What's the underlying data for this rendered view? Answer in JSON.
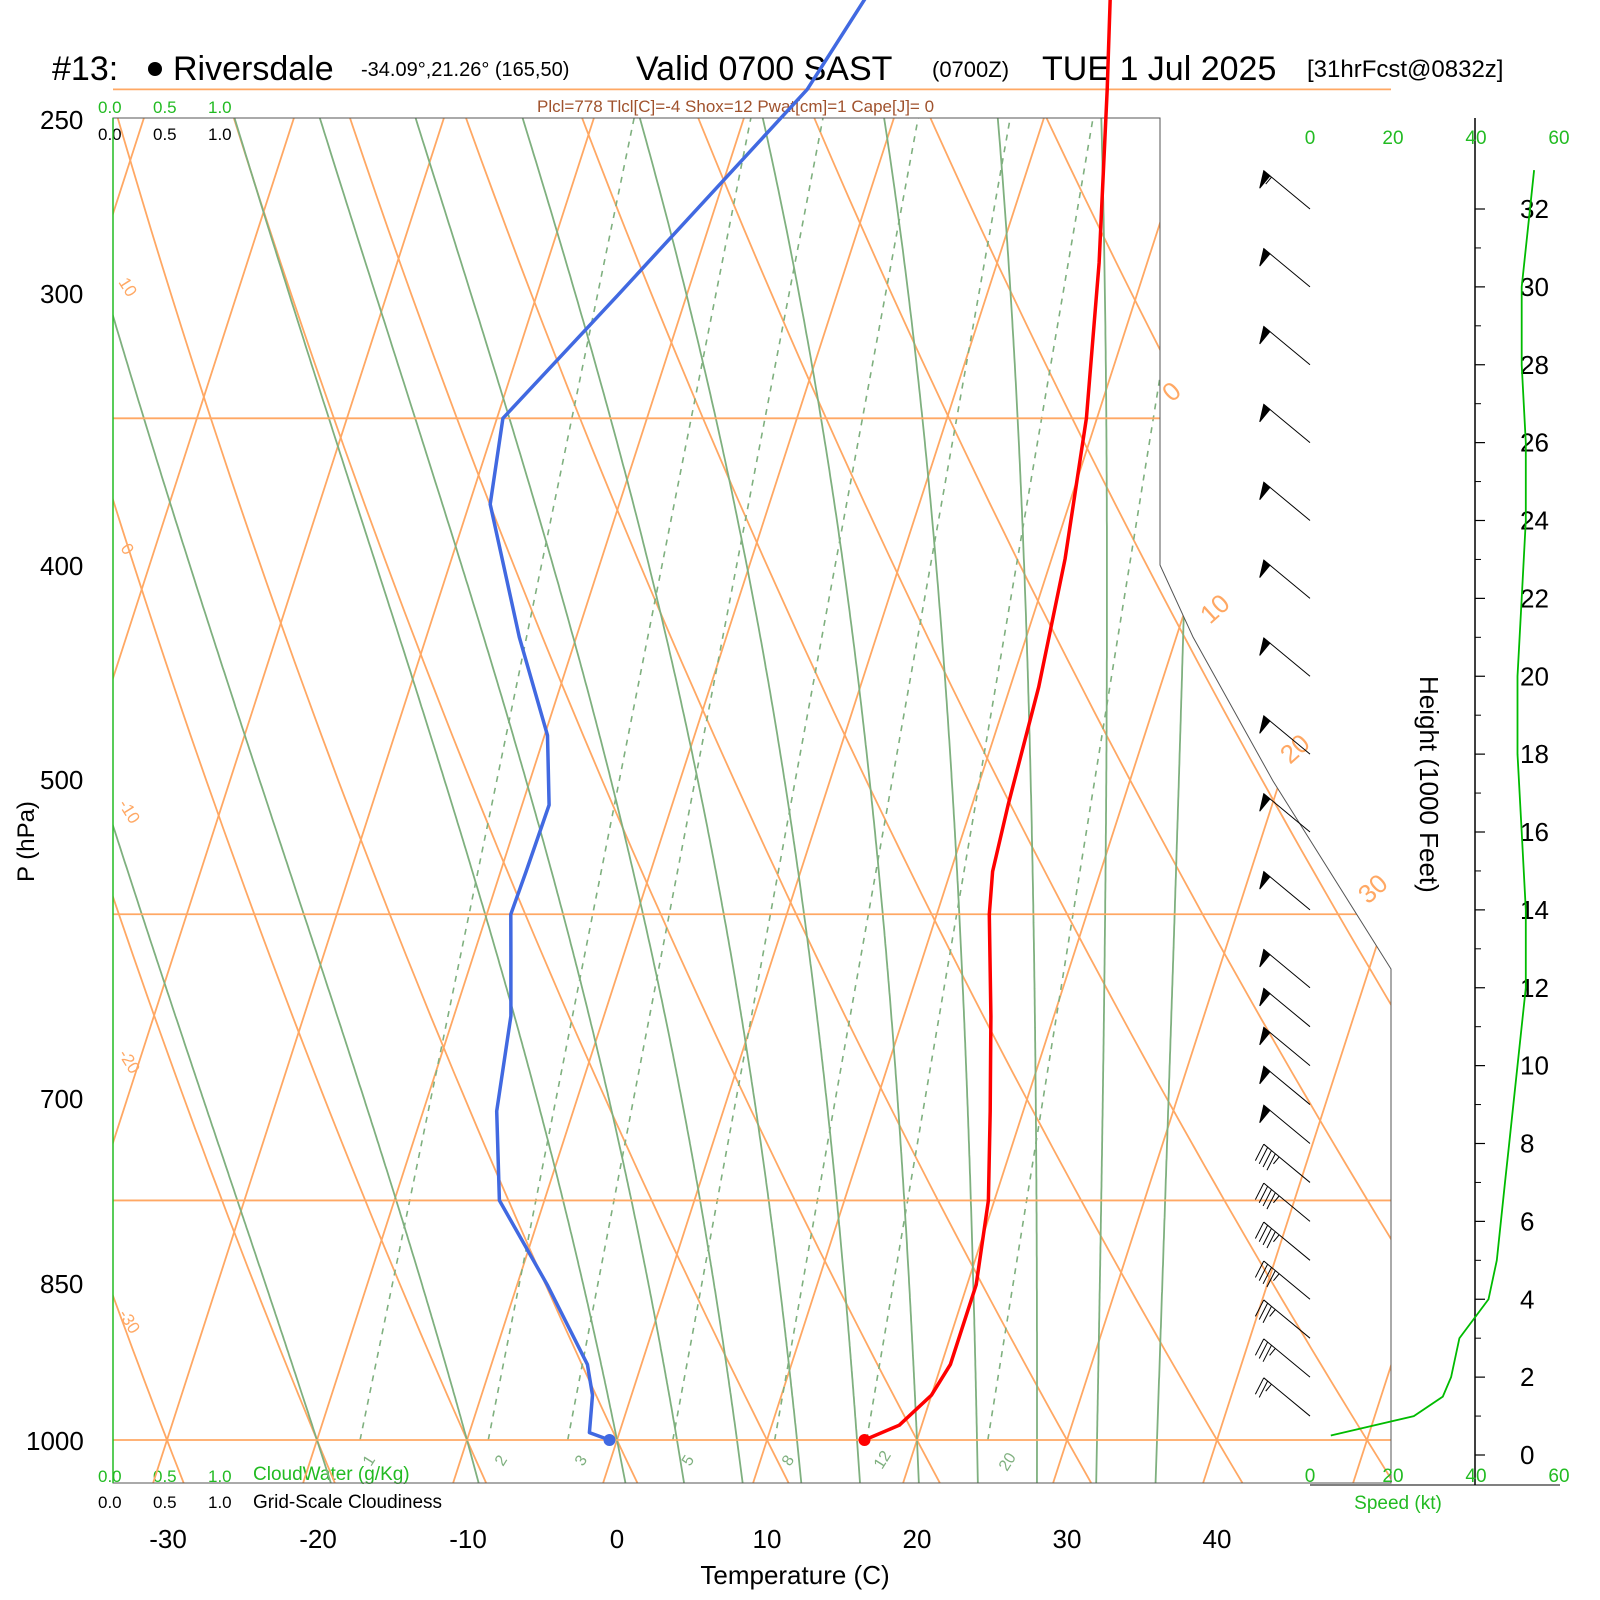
{
  "header": {
    "station_num": "#13:",
    "station_name": "Riversdale",
    "coords": "-34.09°,21.26° (165,50)",
    "valid": "Valid 0700 SAST",
    "zulu": "(0700Z)",
    "date": "TUE 1 Jul 2025",
    "fcst": "[31hrFcst@0832z]",
    "params": "Plcl=778 Tlcl[C]=-4 Shox=12 Pwat[cm]=1 Cape[J]= 0"
  },
  "colors": {
    "temperature": "#ff0000",
    "dewpoint": "#4169e1",
    "isotherm_isobar": "#ffa864",
    "adiabat": "#7fb07f",
    "speed": "#00bb00"
  },
  "chart_data": {
    "type": "line",
    "xlabel": "Temperature (C)",
    "ylabel": "P (hPa)",
    "x_ticks": [
      "-30",
      "-20",
      "-10",
      "0",
      "10",
      "20",
      "30",
      "40"
    ],
    "p_ticks": [
      "250",
      "300",
      "400",
      "500",
      "700",
      "850",
      "1000"
    ],
    "isotherm_labels": [
      "10",
      "0",
      "-10",
      "-20",
      "-30",
      "0",
      "10",
      "20",
      "30"
    ],
    "mixing_ratio_labels": [
      "1",
      "2",
      "3",
      "5",
      "8",
      "12",
      "20"
    ],
    "scale_top_green": [
      "0.0",
      "0.5",
      "1.0"
    ],
    "scale_top_black": [
      "0.0",
      "0.5",
      "1.0"
    ],
    "scale_bottom_green": [
      "0.0",
      "0.5",
      "1.0"
    ],
    "scale_bottom_black": [
      "0.0",
      "0.5",
      "1.0"
    ],
    "cloudwater_label": "CloudWater (g/Kg)",
    "cloudiness_label": "Grid-Scale Cloudiness",
    "series": [
      {
        "name": "temperature",
        "points": [
          [
            1000,
            16.5
          ],
          [
            990,
            18.5
          ],
          [
            970,
            20.0
          ],
          [
            950,
            20.6
          ],
          [
            900,
            20.6
          ],
          [
            850,
            19.6
          ],
          [
            800,
            17.8
          ],
          [
            750,
            15.8
          ],
          [
            700,
            13.5
          ],
          [
            680,
            12.8
          ],
          [
            650,
            12.4
          ],
          [
            600,
            11.9
          ],
          [
            550,
            10.9
          ],
          [
            500,
            9.3
          ],
          [
            450,
            6.8
          ],
          [
            400,
            3.6
          ],
          [
            350,
            -0.2
          ],
          [
            320,
            -2.6
          ],
          [
            300,
            -4.3
          ],
          [
            275,
            -6.8
          ],
          [
            262,
            -8.6
          ]
        ]
      },
      {
        "name": "dewpoint",
        "points": [
          [
            1000,
            -0.5
          ],
          [
            995,
            -2.0
          ],
          [
            970,
            -2.6
          ],
          [
            950,
            -3.6
          ],
          [
            900,
            -8.0
          ],
          [
            850,
            -13.0
          ],
          [
            800,
            -15.1
          ],
          [
            750,
            -16.2
          ],
          [
            720,
            -17.5
          ],
          [
            700,
            -18.4
          ],
          [
            680,
            -18.3
          ],
          [
            650,
            -18.2
          ],
          [
            620,
            -19.8
          ],
          [
            580,
            -23.8
          ],
          [
            530,
            -28.6
          ],
          [
            500,
            -29.6
          ],
          [
            460,
            -24.6
          ],
          [
            400,
            -16.4
          ],
          [
            375,
            -14.4
          ],
          [
            345,
            -15.4
          ],
          [
            320,
            -16.8
          ],
          [
            300,
            -18.3
          ],
          [
            280,
            -20.3
          ],
          [
            262,
            -22.2
          ]
        ]
      }
    ],
    "wind_axis": {
      "label": "Speed (kt)",
      "ticks": [
        "0",
        "20",
        "40",
        "60"
      ],
      "profile": [
        [
          0.5,
          5
        ],
        [
          1,
          25
        ],
        [
          1.5,
          32
        ],
        [
          2,
          34
        ],
        [
          3,
          36
        ],
        [
          4,
          43
        ],
        [
          5,
          45
        ],
        [
          6,
          46
        ],
        [
          7,
          47
        ],
        [
          8,
          48
        ],
        [
          10,
          50
        ],
        [
          12,
          52
        ],
        [
          14,
          52
        ],
        [
          16,
          51
        ],
        [
          18,
          50
        ],
        [
          20,
          50
        ],
        [
          22,
          51
        ],
        [
          24,
          52
        ],
        [
          26,
          52
        ],
        [
          28,
          51
        ],
        [
          30,
          51
        ],
        [
          32,
          53
        ],
        [
          33,
          54
        ]
      ]
    },
    "height_axis": {
      "label": "Height (1000 Feet)",
      "ticks": [
        "0",
        "2",
        "4",
        "6",
        "8",
        "10",
        "12",
        "14",
        "16",
        "18",
        "20",
        "22",
        "24",
        "26",
        "28",
        "30",
        "32"
      ]
    }
  }
}
